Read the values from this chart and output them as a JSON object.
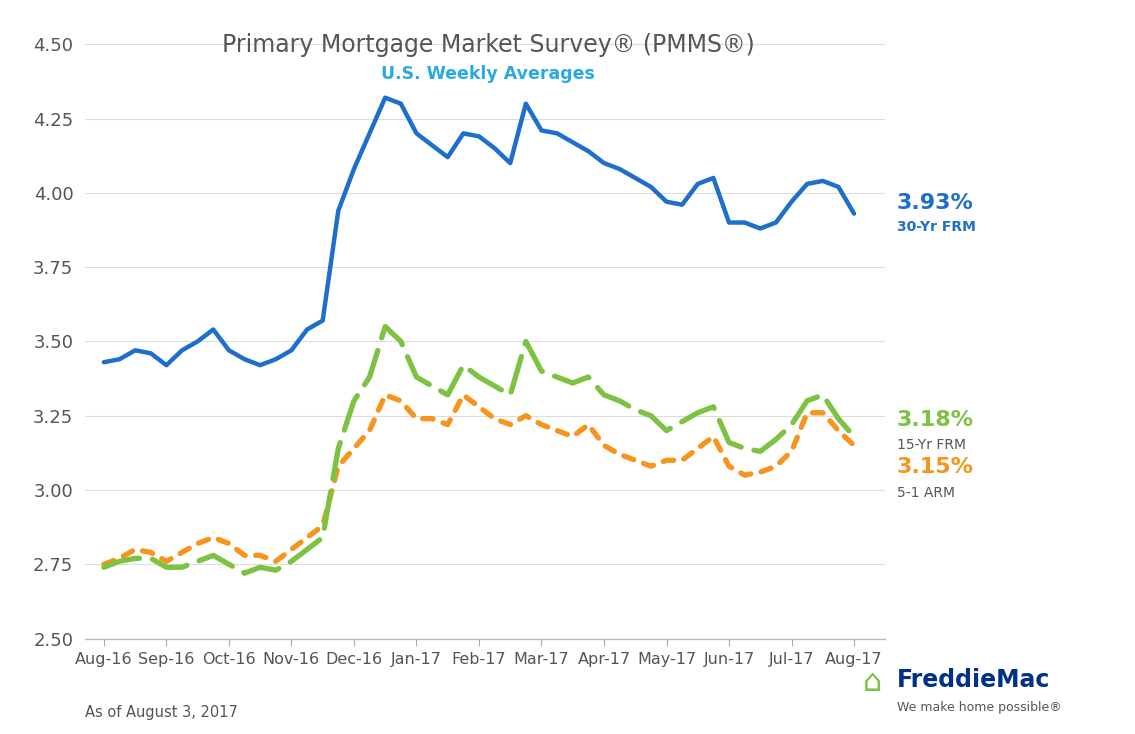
{
  "title": "Primary Mortgage Market Survey® (PMMS®)",
  "subtitle": "U.S. Weekly Averages",
  "footnote": "As of August 3, 2017",
  "title_color": "#555555",
  "subtitle_color": "#29abe2",
  "background_color": "#ffffff",
  "ylim": [
    2.5,
    4.55
  ],
  "yticks": [
    2.5,
    2.75,
    3.0,
    3.25,
    3.5,
    3.75,
    4.0,
    4.25,
    4.5
  ],
  "xtick_labels": [
    "Aug-16",
    "Sep-16",
    "Oct-16",
    "Nov-16",
    "Dec-16",
    "Jan-17",
    "Feb-17",
    "Mar-17",
    "Apr-17",
    "May-17",
    "Jun-17",
    "Jul-17",
    "Aug-17"
  ],
  "line30_label": "3.93%",
  "line30_sublabel": "30-Yr FRM",
  "line30_color": "#1e6fcc",
  "line15_label": "3.18%",
  "line15_sublabel": "15-Yr FRM",
  "line15_color": "#7dc242",
  "line51_label": "3.15%",
  "line51_sublabel": "5-1 ARM",
  "line51_color": "#f7941d",
  "line30": [
    3.43,
    3.44,
    3.47,
    3.46,
    3.42,
    3.47,
    3.5,
    3.54,
    3.47,
    3.44,
    3.42,
    3.44,
    3.47,
    3.54,
    3.57,
    3.94,
    4.08,
    4.2,
    4.32,
    4.3,
    4.2,
    4.16,
    4.12,
    4.2,
    4.19,
    4.15,
    4.1,
    4.3,
    4.21,
    4.2,
    4.17,
    4.14,
    4.1,
    4.08,
    4.05,
    4.02,
    3.97,
    3.96,
    4.03,
    4.05,
    3.9,
    3.9,
    3.88,
    3.9,
    3.97,
    4.03,
    4.04,
    4.02,
    3.93
  ],
  "line15": [
    2.74,
    2.76,
    2.77,
    2.77,
    2.74,
    2.74,
    2.76,
    2.78,
    2.75,
    2.72,
    2.74,
    2.73,
    2.76,
    2.8,
    2.84,
    3.14,
    3.3,
    3.38,
    3.55,
    3.5,
    3.38,
    3.35,
    3.32,
    3.42,
    3.38,
    3.35,
    3.32,
    3.5,
    3.4,
    3.38,
    3.36,
    3.38,
    3.32,
    3.3,
    3.27,
    3.25,
    3.2,
    3.23,
    3.26,
    3.28,
    3.16,
    3.14,
    3.13,
    3.17,
    3.22,
    3.3,
    3.32,
    3.24,
    3.18
  ],
  "line51": [
    2.75,
    2.77,
    2.8,
    2.79,
    2.76,
    2.79,
    2.82,
    2.84,
    2.82,
    2.78,
    2.78,
    2.76,
    2.8,
    2.84,
    2.88,
    3.08,
    3.14,
    3.2,
    3.32,
    3.3,
    3.24,
    3.24,
    3.22,
    3.32,
    3.28,
    3.24,
    3.22,
    3.25,
    3.22,
    3.2,
    3.18,
    3.22,
    3.15,
    3.12,
    3.1,
    3.08,
    3.1,
    3.1,
    3.14,
    3.18,
    3.08,
    3.05,
    3.06,
    3.08,
    3.13,
    3.26,
    3.26,
    3.2,
    3.15
  ]
}
